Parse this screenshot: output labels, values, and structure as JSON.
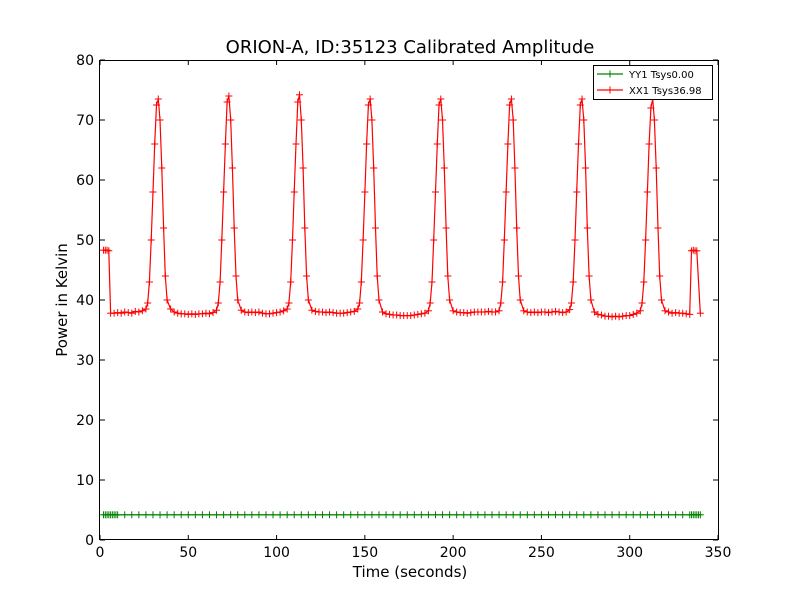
{
  "chart_data": {
    "type": "line",
    "title": "ORION-A, ID:35123 Calibrated Amplitude",
    "xlabel": "Time (seconds)",
    "ylabel": "Power in Kelvin",
    "xlim": [
      0,
      350
    ],
    "ylim": [
      0,
      80
    ],
    "xticks": [
      0,
      50,
      100,
      150,
      200,
      250,
      300,
      350
    ],
    "yticks": [
      0,
      10,
      20,
      30,
      40,
      50,
      60,
      70,
      80
    ],
    "grid": false,
    "legend_position": "top-right",
    "marker": "+",
    "series": [
      {
        "name": "YY1 Tsys0.00",
        "color": "#008000",
        "x": [
          2,
          3,
          4,
          5,
          6,
          7,
          8,
          9,
          10,
          14,
          18,
          22,
          26,
          30,
          34,
          38,
          42,
          46,
          50,
          54,
          58,
          62,
          66,
          70,
          74,
          78,
          82,
          86,
          90,
          94,
          98,
          102,
          106,
          110,
          114,
          118,
          122,
          126,
          130,
          134,
          138,
          142,
          146,
          150,
          154,
          158,
          162,
          166,
          170,
          174,
          178,
          182,
          186,
          190,
          194,
          198,
          202,
          206,
          210,
          214,
          218,
          222,
          226,
          230,
          234,
          238,
          242,
          246,
          250,
          254,
          258,
          262,
          266,
          270,
          274,
          278,
          282,
          286,
          290,
          294,
          298,
          302,
          306,
          310,
          314,
          318,
          322,
          326,
          330,
          334,
          335,
          336,
          337,
          338,
          339,
          340
        ],
        "y": [
          4.2,
          4.2,
          4.2,
          4.2,
          4.2,
          4.2,
          4.2,
          4.2,
          4.2,
          4.2,
          4.2,
          4.2,
          4.2,
          4.2,
          4.2,
          4.2,
          4.2,
          4.2,
          4.2,
          4.2,
          4.2,
          4.2,
          4.2,
          4.2,
          4.2,
          4.2,
          4.2,
          4.2,
          4.2,
          4.2,
          4.2,
          4.2,
          4.2,
          4.2,
          4.2,
          4.2,
          4.2,
          4.2,
          4.2,
          4.2,
          4.2,
          4.2,
          4.2,
          4.2,
          4.2,
          4.2,
          4.2,
          4.2,
          4.2,
          4.2,
          4.2,
          4.2,
          4.2,
          4.2,
          4.2,
          4.2,
          4.2,
          4.2,
          4.2,
          4.2,
          4.2,
          4.2,
          4.2,
          4.2,
          4.2,
          4.2,
          4.2,
          4.2,
          4.2,
          4.2,
          4.2,
          4.2,
          4.2,
          4.2,
          4.2,
          4.2,
          4.2,
          4.2,
          4.2,
          4.2,
          4.2,
          4.2,
          4.2,
          4.2,
          4.2,
          4.2,
          4.2,
          4.2,
          4.2,
          4.2,
          4.2,
          4.2,
          4.2,
          4.2,
          4.2,
          4.2
        ]
      },
      {
        "name": "XX1 Tsys36.98",
        "color": "#ff0000",
        "x": [
          2,
          3,
          4,
          5,
          6,
          8,
          10,
          12,
          14,
          16,
          18,
          20,
          22,
          24,
          26,
          27,
          28,
          29,
          30,
          31,
          32,
          33,
          34,
          35,
          36,
          37,
          38,
          40,
          42,
          44,
          46,
          48,
          50,
          52,
          54,
          56,
          58,
          60,
          62,
          64,
          66,
          67,
          68,
          69,
          70,
          71,
          72,
          73,
          74,
          75,
          76,
          77,
          78,
          80,
          82,
          84,
          86,
          88,
          90,
          92,
          94,
          96,
          98,
          100,
          102,
          104,
          106,
          107,
          108,
          109,
          110,
          111,
          112,
          113,
          114,
          115,
          116,
          117,
          118,
          120,
          122,
          124,
          126,
          128,
          130,
          132,
          134,
          136,
          138,
          140,
          142,
          144,
          146,
          147,
          148,
          149,
          150,
          151,
          152,
          153,
          154,
          155,
          156,
          157,
          158,
          160,
          162,
          164,
          166,
          168,
          170,
          172,
          174,
          176,
          178,
          180,
          182,
          184,
          186,
          187,
          188,
          189,
          190,
          191,
          192,
          193,
          194,
          195,
          196,
          197,
          198,
          200,
          202,
          204,
          206,
          208,
          210,
          212,
          214,
          216,
          218,
          220,
          222,
          224,
          226,
          227,
          228,
          229,
          230,
          231,
          232,
          233,
          234,
          235,
          236,
          237,
          238,
          240,
          242,
          244,
          246,
          248,
          250,
          252,
          254,
          256,
          258,
          260,
          262,
          264,
          266,
          267,
          268,
          269,
          270,
          271,
          272,
          273,
          274,
          275,
          276,
          277,
          278,
          280,
          282,
          284,
          286,
          288,
          290,
          292,
          294,
          296,
          298,
          300,
          302,
          304,
          306,
          307,
          308,
          309,
          310,
          311,
          312,
          313,
          314,
          315,
          316,
          317,
          318,
          320,
          322,
          324,
          326,
          328,
          330,
          332,
          334,
          335,
          336,
          337,
          338,
          340
        ],
        "y": [
          48.3,
          48.3,
          48.3,
          48.2,
          37.8,
          37.8,
          37.9,
          37.8,
          38.0,
          37.9,
          37.8,
          38.1,
          38.0,
          38.2,
          38.5,
          39.5,
          43.0,
          50.0,
          58.0,
          66.0,
          72.5,
          73.5,
          70.0,
          62.0,
          52.0,
          44.0,
          40.0,
          38.5,
          38.0,
          37.8,
          37.7,
          37.7,
          37.6,
          37.7,
          37.6,
          37.7,
          37.7,
          37.8,
          37.7,
          37.9,
          38.3,
          39.5,
          43.0,
          50.0,
          58.0,
          66.0,
          73.0,
          74.0,
          70.0,
          62.0,
          52.0,
          44.0,
          40.0,
          38.3,
          38.0,
          37.9,
          38.0,
          37.9,
          38.0,
          37.8,
          37.7,
          37.7,
          37.8,
          37.9,
          38.0,
          38.2,
          38.5,
          39.5,
          43.0,
          50.0,
          58.0,
          66.0,
          73.0,
          74.2,
          70.0,
          62.0,
          52.0,
          44.0,
          40.0,
          38.3,
          38.1,
          38.0,
          38.0,
          37.9,
          38.0,
          37.9,
          37.8,
          37.8,
          37.8,
          37.9,
          38.0,
          38.1,
          38.5,
          39.5,
          43.0,
          50.0,
          58.0,
          66.0,
          72.5,
          73.5,
          70.0,
          62.0,
          52.0,
          44.0,
          40.0,
          38.0,
          37.7,
          37.6,
          37.5,
          37.5,
          37.4,
          37.4,
          37.4,
          37.4,
          37.5,
          37.6,
          37.7,
          37.8,
          38.2,
          39.5,
          43.0,
          50.0,
          58.0,
          66.0,
          72.5,
          73.5,
          70.0,
          62.0,
          52.0,
          44.0,
          40.0,
          38.2,
          38.0,
          37.9,
          37.9,
          37.8,
          37.9,
          38.0,
          38.0,
          38.0,
          38.0,
          38.1,
          38.0,
          38.0,
          38.2,
          39.5,
          43.0,
          50.0,
          58.0,
          66.0,
          72.5,
          73.5,
          70.0,
          62.0,
          52.0,
          44.0,
          40.0,
          38.2,
          38.0,
          37.9,
          38.0,
          37.9,
          38.0,
          38.0,
          37.9,
          38.0,
          38.1,
          38.0,
          37.9,
          38.0,
          38.4,
          39.5,
          43.0,
          50.0,
          58.0,
          66.0,
          72.5,
          73.5,
          70.0,
          62.0,
          52.0,
          44.0,
          40.0,
          38.0,
          37.6,
          37.5,
          37.3,
          37.3,
          37.2,
          37.3,
          37.2,
          37.3,
          37.4,
          37.4,
          37.6,
          37.8,
          38.2,
          39.5,
          43.0,
          50.0,
          58.0,
          66.0,
          72.0,
          73.5,
          70.0,
          62.0,
          52.0,
          44.0,
          40.0,
          38.2,
          38.0,
          37.8,
          37.9,
          37.8,
          37.8,
          37.7,
          37.6,
          48.2,
          48.3,
          48.2,
          48.2,
          37.8
        ]
      }
    ]
  }
}
